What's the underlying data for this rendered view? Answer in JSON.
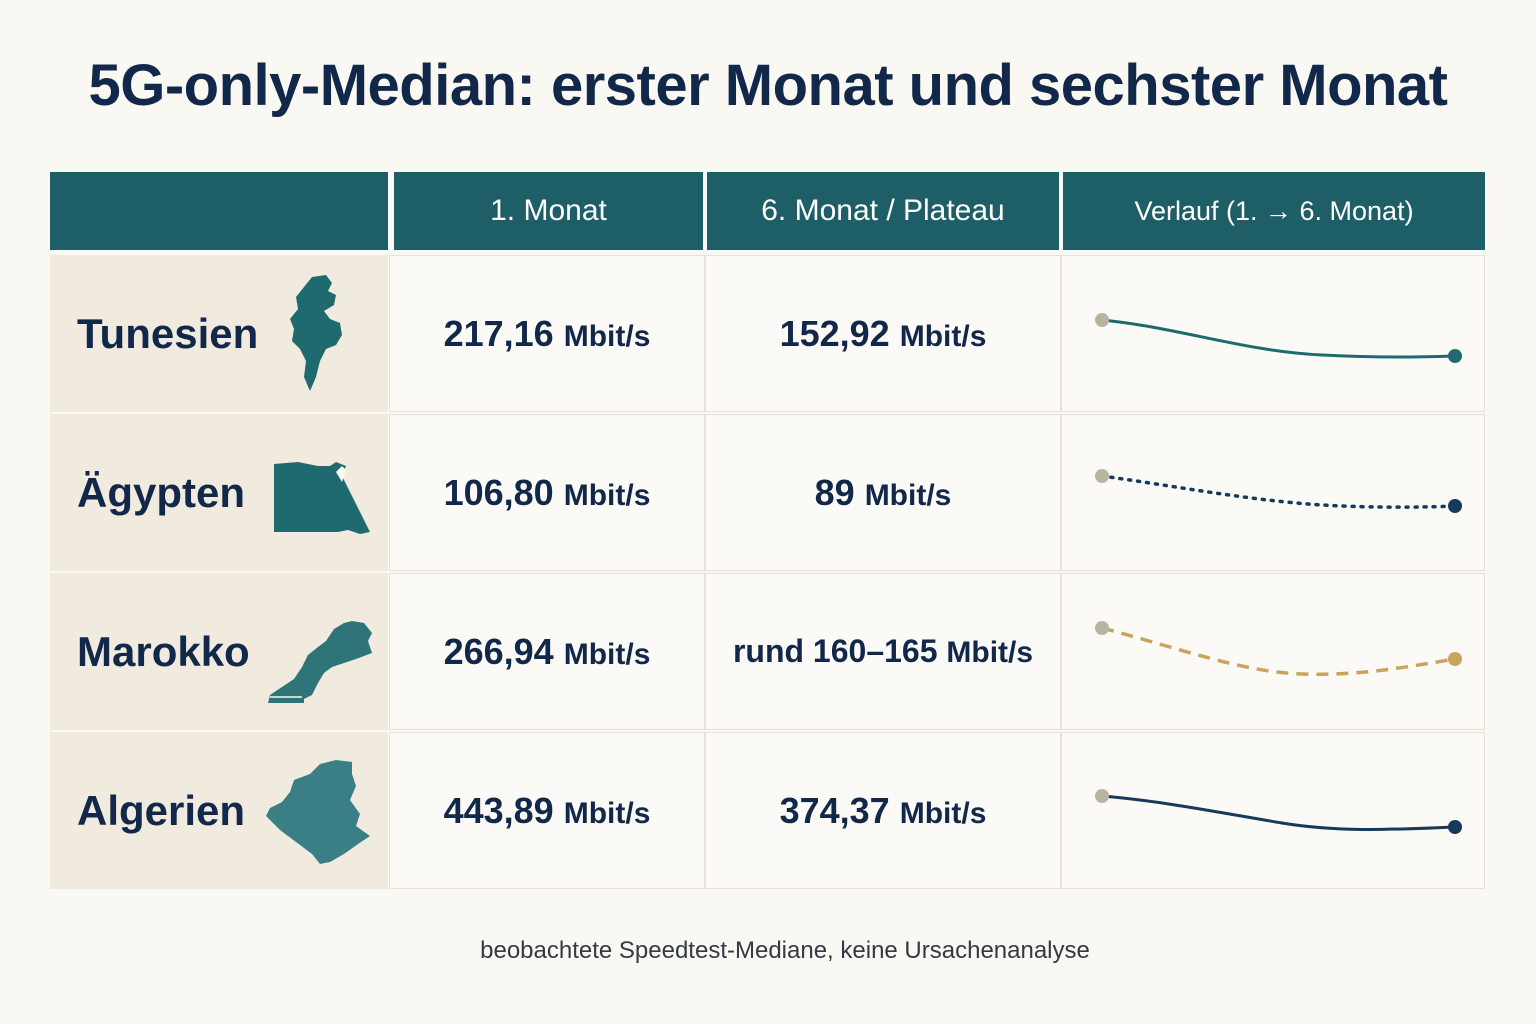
{
  "title": "5G-only-Median: erster Monat und sechster Monat",
  "header": {
    "col_country": "",
    "col_first": "1. Monat",
    "col_sixth": "6. Monat / Plateau",
    "col_trend": "Verlauf (1. → 6. Monat)"
  },
  "rows": [
    {
      "country": "Tunesien",
      "map_icon": "tunisia-map-icon",
      "first_value": "217,16",
      "first_unit": "Mbit/s",
      "sixth_value": "152,92",
      "sixth_unit": "Mbit/s",
      "trend_style": "solid",
      "trend_color": "#1e6b6e"
    },
    {
      "country": "Ägypten",
      "map_icon": "egypt-map-icon",
      "first_value": "106,80",
      "first_unit": "Mbit/s",
      "sixth_value": "89",
      "sixth_unit": "Mbit/s",
      "trend_style": "dotted",
      "trend_color": "#163a5c"
    },
    {
      "country": "Marokko",
      "map_icon": "morocco-map-icon",
      "first_value": "266,94",
      "first_unit": "Mbit/s",
      "sixth_value": "rund 160–165",
      "sixth_unit": "Mbit/s",
      "trend_style": "dashed",
      "trend_color": "#c8a45c"
    },
    {
      "country": "Algerien",
      "map_icon": "algeria-map-icon",
      "first_value": "443,89",
      "first_unit": "Mbit/s",
      "sixth_value": "374,37",
      "sixth_unit": "Mbit/s",
      "trend_style": "solid",
      "trend_color": "#163a5c"
    }
  ],
  "colors": {
    "header_bg": "#1e5f67",
    "country_bg": "#f1ebdf",
    "map_teal": "#1f6a6e",
    "start_dot": "#b9b4a2",
    "text": "#12284a"
  },
  "footnote": "beobachtete Speedtest-Mediane, keine Ursachenanalyse",
  "chart_data": {
    "type": "table",
    "title": "5G-only-Median: erster Monat und sechster Monat",
    "columns": [
      "",
      "1. Monat",
      "6. Monat / Plateau",
      "Verlauf (1. → 6. Monat)"
    ],
    "unit": "Mbit/s",
    "series": [
      {
        "name": "Tunesien",
        "first": 217.16,
        "sixth": 152.92
      },
      {
        "name": "Ägypten",
        "first": 106.8,
        "sixth": 89
      },
      {
        "name": "Marokko",
        "first": 266.94,
        "sixth_range": [
          160,
          165
        ]
      },
      {
        "name": "Algerien",
        "first": 443.89,
        "sixth": 374.37
      }
    ]
  }
}
